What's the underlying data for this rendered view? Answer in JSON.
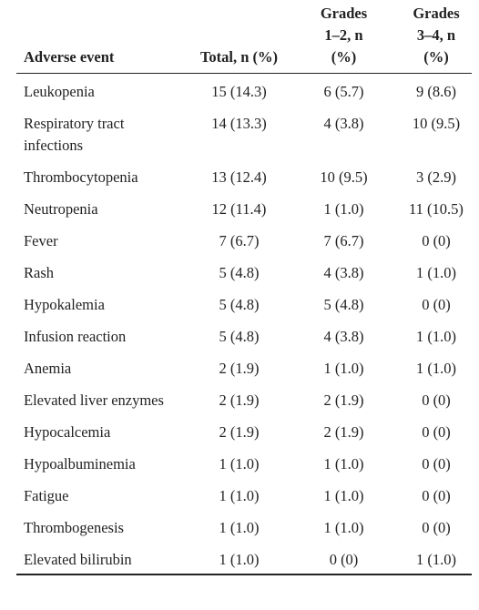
{
  "table": {
    "headers": [
      "Adverse event",
      "Total, n (%)",
      "Grades 1–2, n (%)",
      "Grades 3–4, n (%)"
    ],
    "rows": [
      [
        "Leukopenia",
        "15 (14.3)",
        "6 (5.7)",
        "9 (8.6)"
      ],
      [
        "Respiratory tract infections",
        "14 (13.3)",
        "4 (3.8)",
        "10 (9.5)"
      ],
      [
        "Thrombocytopenia",
        "13 (12.4)",
        "10 (9.5)",
        "3 (2.9)"
      ],
      [
        "Neutropenia",
        "12 (11.4)",
        "1 (1.0)",
        "11 (10.5)"
      ],
      [
        "Fever",
        "7 (6.7)",
        "7 (6.7)",
        "0 (0)"
      ],
      [
        "Rash",
        "5 (4.8)",
        "4 (3.8)",
        "1 (1.0)"
      ],
      [
        "Hypokalemia",
        "5 (4.8)",
        "5 (4.8)",
        "0 (0)"
      ],
      [
        "Infusion reaction",
        "5 (4.8)",
        "4 (3.8)",
        "1 (1.0)"
      ],
      [
        "Anemia",
        "2 (1.9)",
        "1 (1.0)",
        "1 (1.0)"
      ],
      [
        "Elevated liver enzymes",
        "2 (1.9)",
        "2 (1.9)",
        "0 (0)"
      ],
      [
        "Hypocalcemia",
        "2 (1.9)",
        "2 (1.9)",
        "0 (0)"
      ],
      [
        "Hypoalbuminemia",
        "1 (1.0)",
        "1 (1.0)",
        "0 (0)"
      ],
      [
        "Fatigue",
        "1 (1.0)",
        "1 (1.0)",
        "0 (0)"
      ],
      [
        "Thrombogenesis",
        "1 (1.0)",
        "1 (1.0)",
        "0 (0)"
      ],
      [
        "Elevated bilirubin",
        "1 (1.0)",
        "0 (0)",
        "1 (1.0)"
      ]
    ]
  }
}
